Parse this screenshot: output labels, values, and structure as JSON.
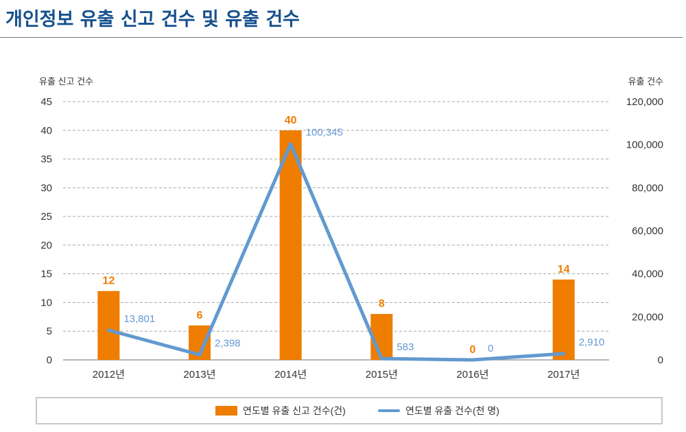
{
  "chart_data": {
    "type": "bar+line",
    "title": "개인정보 유출 신고 건수 및 유출 건수",
    "categories": [
      "2012년",
      "2013년",
      "2014년",
      "2015년",
      "2016년",
      "2017년"
    ],
    "y_left": {
      "label": "유출 신고 건수",
      "ticks": [
        "0",
        "5",
        "10",
        "15",
        "20",
        "25",
        "30",
        "35",
        "40",
        "45"
      ],
      "range": [
        0,
        45
      ]
    },
    "y_right": {
      "label": "유출 건수",
      "ticks": [
        "0",
        "20,000",
        "40,000",
        "60,000",
        "80,000",
        "100,000",
        "120,000"
      ],
      "range": [
        0,
        120000
      ]
    },
    "grid": "horizontal-dashed",
    "legend_position": "bottom",
    "series": [
      {
        "name": "연도별 유출 신고 건수(건)",
        "kind": "bar",
        "axis": "left",
        "color": "#ee7d00",
        "values": [
          12,
          6,
          40,
          8,
          0,
          14
        ],
        "labels": [
          "12",
          "6",
          "40",
          "8",
          "0",
          "14"
        ]
      },
      {
        "name": "연도별 유출 건수(천 명)",
        "kind": "line",
        "axis": "right",
        "color": "#6299d0",
        "values": [
          13801,
          2398,
          100345,
          583,
          0,
          2910
        ],
        "labels": [
          "13,801",
          "2,398",
          "100,345",
          "583",
          "0",
          "2,910"
        ]
      }
    ]
  }
}
